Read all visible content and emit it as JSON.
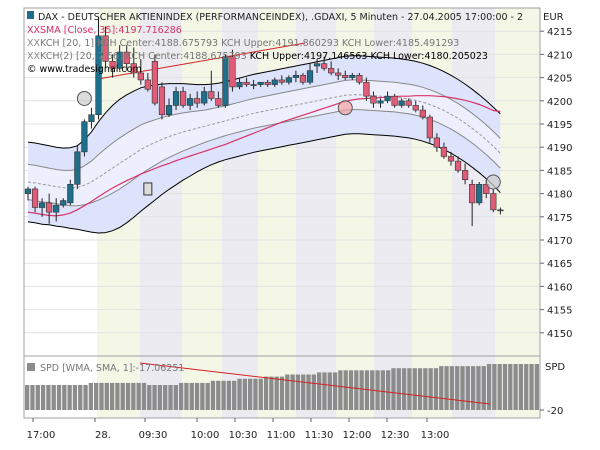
{
  "legend": {
    "line1": "DAX  - DEUTSCHER AKTIENINDEX (PERFORMANCEINDEX), .GDAXI, 5 Minuten - 27.04.2005 17:00:00 - 2",
    "currency": "EUR",
    "line2": "SMA [Close, 35]:4197.716286",
    "line3": "KCH [20, 1] KCH Center:4188.675793 KCH Upper:4191.860293 KCH Lower:4185.491293",
    "line4_prefix": "KCH(2) [20, 2.66] KCH Center:4188.675793 ",
    "line4_suffix": "KCH Upper:4197.146563 KCH Lower:4180.205023",
    "source": "© www.tradesignal.com"
  },
  "spd_panel": {
    "label": "SPD [WMA, SMA, 1]:-17.06251",
    "axis_title": "SPD",
    "tick": "-20",
    "histogram": [
      -10,
      -10,
      -10,
      -10,
      -10,
      -10,
      -10,
      -10,
      -10,
      -10,
      -10,
      -10,
      -11,
      -11,
      -11,
      -11,
      -11,
      -11,
      -11,
      -11,
      -11,
      -11,
      -11,
      -10,
      -10,
      -10,
      -10,
      -10,
      -10,
      -11,
      -11,
      -11,
      -11,
      -11,
      -11,
      -12,
      -12,
      -12,
      -12,
      -12,
      -13,
      -13,
      -13,
      -13,
      -13,
      -14,
      -14,
      -14,
      -14,
      -15,
      -15,
      -15,
      -15,
      -15,
      -15,
      -16,
      -16,
      -16,
      -16,
      -17,
      -17,
      -17,
      -17,
      -17,
      -17,
      -17,
      -17,
      -17,
      -17,
      -18,
      -18,
      -18,
      -18,
      -18,
      -18,
      -18,
      -18,
      -18,
      -19,
      -19,
      -19,
      -19,
      -19,
      -19,
      -19,
      -19,
      -19,
      -20,
      -20,
      -20,
      -20,
      -20,
      -20,
      -20,
      -20,
      -20,
      -20
    ]
  },
  "colors": {
    "up": "#1f6f8b",
    "down": "#e05d7a",
    "sma": "#d8336b",
    "channel_fill": "#dde3fa",
    "outer_band": "#000000",
    "inner_band": "#888888",
    "shade_green": "#f4f7e6",
    "shade_gray": "#ecebf2",
    "histogram": "#8c8c8c",
    "trendline": "#d62020"
  },
  "chart_data": {
    "type": "candlestick",
    "title": "DAX  - DEUTSCHER AKTIENINDEX (PERFORMANCEINDEX), .GDAXI, 5 Minuten - 27.04.2005 17:00:00 - 2",
    "y_axis_title": "EUR",
    "ylim": [
      4145,
      4220
    ],
    "y_ticks": [
      4150,
      4155,
      4160,
      4165,
      4170,
      4175,
      4180,
      4185,
      4190,
      4195,
      4200,
      4205,
      4210,
      4215
    ],
    "x_ticks": [
      "17:00",
      "28.",
      "09:30",
      "10:00",
      "10:30",
      "11:00",
      "11:30",
      "12:00",
      "12:30",
      "13:00"
    ],
    "candles": [
      {
        "o": 4180.0,
        "h": 4181.5,
        "l": 4178.5,
        "c": 4181.0
      },
      {
        "o": 4181.0,
        "h": 4181.5,
        "l": 4176.0,
        "c": 4177.0
      },
      {
        "o": 4177.0,
        "h": 4179.0,
        "l": 4175.0,
        "c": 4178.0
      },
      {
        "o": 4178.0,
        "h": 4180.0,
        "l": 4173.5,
        "c": 4176.0
      },
      {
        "o": 4176.0,
        "h": 4179.0,
        "l": 4174.0,
        "c": 4177.5
      },
      {
        "o": 4177.5,
        "h": 4179.0,
        "l": 4177.0,
        "c": 4178.5
      },
      {
        "o": 4178.0,
        "h": 4183.0,
        "l": 4177.5,
        "c": 4182.0
      },
      {
        "o": 4182.0,
        "h": 4190.5,
        "l": 4181.0,
        "c": 4189.0
      },
      {
        "o": 4189.0,
        "h": 4196.0,
        "l": 4188.0,
        "c": 4195.5
      },
      {
        "o": 4195.5,
        "h": 4198.5,
        "l": 4194.0,
        "c": 4197.0
      },
      {
        "o": 4197.0,
        "h": 4218.0,
        "l": 4196.0,
        "c": 4214.0
      },
      {
        "o": 4214.0,
        "h": 4216.0,
        "l": 4207.0,
        "c": 4208.5
      },
      {
        "o": 4208.5,
        "h": 4210.0,
        "l": 4205.0,
        "c": 4207.0
      },
      {
        "o": 4207.0,
        "h": 4212.0,
        "l": 4206.5,
        "c": 4210.5
      },
      {
        "o": 4210.5,
        "h": 4212.0,
        "l": 4206.5,
        "c": 4208.0
      },
      {
        "o": 4208.0,
        "h": 4211.5,
        "l": 4205.0,
        "c": 4206.0
      },
      {
        "o": 4206.0,
        "h": 4209.0,
        "l": 4203.5,
        "c": 4204.5
      },
      {
        "o": 4204.5,
        "h": 4206.0,
        "l": 4202.0,
        "c": 4202.5
      },
      {
        "o": 4208.5,
        "h": 4210.0,
        "l": 4199.0,
        "c": 4199.5
      },
      {
        "o": 4203.0,
        "h": 4204.0,
        "l": 4196.0,
        "c": 4197.0
      },
      {
        "o": 4197.0,
        "h": 4200.5,
        "l": 4196.5,
        "c": 4199.0
      },
      {
        "o": 4199.0,
        "h": 4203.0,
        "l": 4198.0,
        "c": 4202.0
      },
      {
        "o": 4202.0,
        "h": 4203.0,
        "l": 4198.5,
        "c": 4199.0
      },
      {
        "o": 4199.0,
        "h": 4201.5,
        "l": 4198.0,
        "c": 4200.5
      },
      {
        "o": 4200.5,
        "h": 4202.0,
        "l": 4198.5,
        "c": 4199.5
      },
      {
        "o": 4199.5,
        "h": 4203.0,
        "l": 4199.0,
        "c": 4202.0
      },
      {
        "o": 4202.0,
        "h": 4206.5,
        "l": 4200.0,
        "c": 4200.5
      },
      {
        "o": 4200.5,
        "h": 4202.0,
        "l": 4198.5,
        "c": 4199.0
      },
      {
        "o": 4199.0,
        "h": 4210.0,
        "l": 4198.5,
        "c": 4209.5
      },
      {
        "o": 4209.5,
        "h": 4211.0,
        "l": 4202.0,
        "c": 4203.0
      },
      {
        "o": 4203.0,
        "h": 4205.0,
        "l": 4202.5,
        "c": 4204.0
      },
      {
        "o": 4204.0,
        "h": 4205.0,
        "l": 4203.0,
        "c": 4203.5
      },
      {
        "o": 4203.5,
        "h": 4204.5,
        "l": 4202.5,
        "c": 4203.5
      },
      {
        "o": 4203.5,
        "h": 4204.0,
        "l": 4203.0,
        "c": 4204.0
      },
      {
        "o": 4204.0,
        "h": 4204.5,
        "l": 4203.0,
        "c": 4203.5
      },
      {
        "o": 4203.5,
        "h": 4205.0,
        "l": 4203.0,
        "c": 4204.5
      },
      {
        "o": 4204.5,
        "h": 4205.5,
        "l": 4203.5,
        "c": 4204.0
      },
      {
        "o": 4204.0,
        "h": 4205.5,
        "l": 4203.5,
        "c": 4205.0
      },
      {
        "o": 4205.0,
        "h": 4206.5,
        "l": 4204.0,
        "c": 4205.5
      },
      {
        "o": 4205.5,
        "h": 4206.0,
        "l": 4203.5,
        "c": 4204.0
      },
      {
        "o": 4204.0,
        "h": 4208.0,
        "l": 4203.5,
        "c": 4206.5
      },
      {
        "o": 4207.5,
        "h": 4209.0,
        "l": 4206.0,
        "c": 4208.0
      },
      {
        "o": 4208.0,
        "h": 4209.5,
        "l": 4206.5,
        "c": 4207.0
      },
      {
        "o": 4207.0,
        "h": 4208.5,
        "l": 4205.5,
        "c": 4206.0
      },
      {
        "o": 4206.0,
        "h": 4207.0,
        "l": 4204.5,
        "c": 4205.5
      },
      {
        "o": 4205.5,
        "h": 4206.5,
        "l": 4204.5,
        "c": 4205.0
      },
      {
        "o": 4205.0,
        "h": 4206.0,
        "l": 4204.5,
        "c": 4205.5
      },
      {
        "o": 4205.5,
        "h": 4206.0,
        "l": 4203.5,
        "c": 4204.0
      },
      {
        "o": 4204.0,
        "h": 4205.0,
        "l": 4200.0,
        "c": 4201.0
      },
      {
        "o": 4201.0,
        "h": 4202.0,
        "l": 4198.5,
        "c": 4199.5
      },
      {
        "o": 4199.5,
        "h": 4200.5,
        "l": 4198.5,
        "c": 4200.0
      },
      {
        "o": 4200.0,
        "h": 4202.0,
        "l": 4199.5,
        "c": 4201.0
      },
      {
        "o": 4201.0,
        "h": 4201.5,
        "l": 4198.5,
        "c": 4199.0
      },
      {
        "o": 4199.0,
        "h": 4200.5,
        "l": 4198.5,
        "c": 4200.0
      },
      {
        "o": 4200.0,
        "h": 4200.5,
        "l": 4198.5,
        "c": 4199.0
      },
      {
        "o": 4199.0,
        "h": 4200.0,
        "l": 4197.5,
        "c": 4198.0
      },
      {
        "o": 4198.0,
        "h": 4199.0,
        "l": 4196.0,
        "c": 4196.5
      },
      {
        "o": 4196.5,
        "h": 4197.0,
        "l": 4191.0,
        "c": 4192.0
      },
      {
        "o": 4192.0,
        "h": 4193.0,
        "l": 4189.0,
        "c": 4190.0
      },
      {
        "o": 4190.0,
        "h": 4191.0,
        "l": 4187.5,
        "c": 4188.0
      },
      {
        "o": 4188.0,
        "h": 4189.0,
        "l": 4186.0,
        "c": 4187.0
      },
      {
        "o": 4187.0,
        "h": 4188.0,
        "l": 4184.5,
        "c": 4185.0
      },
      {
        "o": 4185.0,
        "h": 4186.5,
        "l": 4182.0,
        "c": 4183.0
      },
      {
        "o": 4182.0,
        "h": 4183.0,
        "l": 4173.0,
        "c": 4178.0
      },
      {
        "o": 4178.0,
        "h": 4182.5,
        "l": 4177.5,
        "c": 4182.0
      },
      {
        "o": 4182.0,
        "h": 4183.0,
        "l": 4179.0,
        "c": 4180.0
      },
      {
        "o": 4180.0,
        "h": 4181.0,
        "l": 4176.0,
        "c": 4176.5
      },
      {
        "o": 4176.5,
        "h": 4177.0,
        "l": 4175.5,
        "c": 4176.5
      }
    ],
    "sma": [
      4176.0,
      4175.8,
      4175.5,
      4175.3,
      4175.2,
      4175.4,
      4175.8,
      4176.5,
      4177.4,
      4178.3,
      4179.3,
      4180.3,
      4181.2,
      4182.0,
      4182.8,
      4183.5,
      4184.2,
      4184.8,
      4185.4,
      4186.0,
      4186.5,
      4187.1,
      4187.6,
      4188.1,
      4188.6,
      4189.1,
      4189.6,
      4190.1,
      4190.6,
      4191.2,
      4191.8,
      4192.4,
      4193.0,
      4193.6,
      4194.2,
      4194.8,
      4195.4,
      4195.9,
      4196.4,
      4196.9,
      4197.4,
      4197.9,
      4198.4,
      4198.9,
      4199.4,
      4199.9,
      4200.2,
      4200.4,
      4200.5,
      4200.6,
      4200.7,
      4200.8,
      4200.9,
      4201.0,
      4201.0,
      4201.1,
      4201.1,
      4201.1,
      4201.0,
      4200.9,
      4200.7,
      4200.4,
      4200.1,
      4199.7,
      4199.2,
      4198.6,
      4197.9,
      4197.7
    ],
    "kch_center": [
      4182.5,
      4182.3,
      4182.0,
      4181.8,
      4181.5,
      4181.3,
      4181.2,
      4181.3,
      4181.8,
      4182.5,
      4183.5,
      4184.5,
      4185.5,
      4186.5,
      4187.5,
      4188.5,
      4189.5,
      4190.3,
      4191.0,
      4191.7,
      4192.3,
      4192.8,
      4193.3,
      4193.7,
      4194.1,
      4194.5,
      4194.9,
      4195.3,
      4195.7,
      4196.1,
      4196.5,
      4196.9,
      4197.3,
      4197.6,
      4197.9,
      4198.2,
      4198.5,
      4198.8,
      4199.1,
      4199.4,
      4199.7,
      4200.0,
      4200.3,
      4200.6,
      4200.9,
      4201.2,
      4201.3,
      4201.3,
      4201.2,
      4201.1,
      4201.0,
      4200.9,
      4200.8,
      4200.6,
      4200.4,
      4200.1,
      4199.7,
      4199.2,
      4198.6,
      4197.9,
      4197.1,
      4196.2,
      4195.2,
      4194.1,
      4192.9,
      4191.6,
      4190.2,
      4188.7
    ],
    "kch_half": [
      3.8,
      3.8,
      3.8,
      3.7,
      3.7,
      3.7,
      3.8,
      3.9,
      4.2,
      4.5,
      4.9,
      5.2,
      5.4,
      5.5,
      5.5,
      5.4,
      5.3,
      5.1,
      4.9,
      4.7,
      4.5,
      4.3,
      4.1,
      3.9,
      3.7,
      3.5,
      3.4,
      3.3,
      3.2,
      3.2,
      3.2,
      3.2,
      3.2,
      3.2,
      3.2,
      3.2,
      3.2,
      3.2,
      3.2,
      3.2,
      3.2,
      3.2,
      3.2,
      3.2,
      3.2,
      3.2,
      3.2,
      3.2,
      3.2,
      3.2,
      3.2,
      3.2,
      3.2,
      3.2,
      3.2,
      3.2,
      3.2,
      3.2,
      3.2,
      3.2,
      3.2,
      3.2,
      3.2,
      3.2,
      3.2,
      3.2,
      3.2,
      3.2
    ],
    "kch2_half": [
      8.6,
      8.6,
      8.6,
      8.5,
      8.5,
      8.5,
      8.7,
      9.0,
      9.8,
      10.8,
      12.0,
      12.9,
      13.5,
      13.8,
      13.8,
      13.6,
      13.3,
      12.9,
      12.4,
      11.9,
      11.4,
      10.9,
      10.4,
      9.9,
      9.4,
      9.0,
      8.7,
      8.5,
      8.4,
      8.4,
      8.4,
      8.4,
      8.4,
      8.4,
      8.4,
      8.4,
      8.4,
      8.4,
      8.4,
      8.4,
      8.4,
      8.4,
      8.4,
      8.4,
      8.4,
      8.4,
      8.4,
      8.4,
      8.4,
      8.4,
      8.4,
      8.4,
      8.4,
      8.4,
      8.4,
      8.4,
      8.4,
      8.4,
      8.4,
      8.4,
      8.4,
      8.4,
      8.4,
      8.4,
      8.4,
      8.4,
      8.4,
      8.5
    ],
    "markers": [
      {
        "bar": 8,
        "value": 4200.5,
        "shape": "circle"
      },
      {
        "bar": 45,
        "value": 4198.5,
        "shape": "circle"
      },
      {
        "bar": 66,
        "value": 4182.5,
        "shape": "circle"
      },
      {
        "bar": 17,
        "value": 4181.0,
        "shape": "square"
      }
    ]
  }
}
